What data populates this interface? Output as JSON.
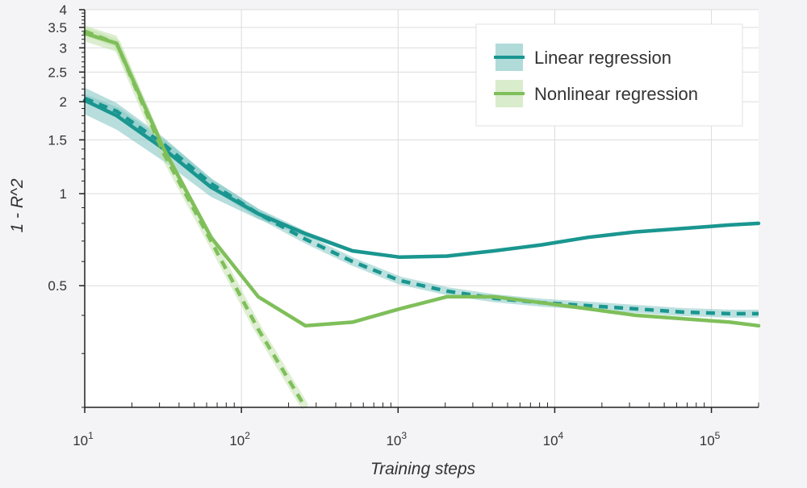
{
  "chart_data": {
    "type": "line",
    "xlabel": "Training steps",
    "ylabel": "1 - R^2",
    "xscale": "log",
    "yscale": "log",
    "xlim": [
      10,
      200000
    ],
    "ylim": [
      0.2,
      4
    ],
    "grid": true,
    "legend_position": "top-right",
    "x_ticks": [
      {
        "value": 10,
        "base": "10",
        "exp": "1"
      },
      {
        "value": 100,
        "base": "10",
        "exp": "2"
      },
      {
        "value": 1000,
        "base": "10",
        "exp": "3"
      },
      {
        "value": 10000,
        "base": "10",
        "exp": "4"
      },
      {
        "value": 100000,
        "base": "10",
        "exp": "5"
      }
    ],
    "y_ticks": [
      {
        "value": 0.5,
        "label": "0.5"
      },
      {
        "value": 1,
        "label": "1"
      },
      {
        "value": 1.5,
        "label": "1.5"
      },
      {
        "value": 2,
        "label": "2"
      },
      {
        "value": 2.5,
        "label": "2.5"
      },
      {
        "value": 3,
        "label": "3"
      },
      {
        "value": 3.5,
        "label": "3.5"
      },
      {
        "value": 4,
        "label": "4"
      }
    ],
    "series": [
      {
        "name": "Linear regression",
        "color": "#1a9690",
        "band_color": "#7cc3c0",
        "x": [
          10,
          16,
          32,
          64,
          128,
          256,
          512,
          1024,
          2048,
          4096,
          8192,
          16384,
          32768,
          65536,
          131072,
          200000
        ],
        "y": [
          2.02,
          1.8,
          1.4,
          1.05,
          0.86,
          0.74,
          0.65,
          0.62,
          0.625,
          0.65,
          0.68,
          0.72,
          0.75,
          0.77,
          0.79,
          0.8
        ],
        "band_width": [
          0.1,
          0.1,
          0.09,
          0.07,
          0.04,
          0.02,
          0.015,
          0.01,
          0.01,
          0.01,
          0.01,
          0.01,
          0.01,
          0.01,
          0.01,
          0.01
        ],
        "dashed_x": [
          10,
          16,
          32,
          64,
          128,
          256,
          512,
          1024,
          2048,
          4096,
          8192,
          16384,
          32768,
          65536,
          131072,
          200000
        ],
        "dashed_y": [
          2.05,
          1.86,
          1.45,
          1.08,
          0.86,
          0.71,
          0.6,
          0.52,
          0.48,
          0.455,
          0.44,
          0.43,
          0.42,
          0.41,
          0.405,
          0.405
        ]
      },
      {
        "name": "Nonlinear regression",
        "color": "#7fbf5a",
        "band_color": "#bfe0a8",
        "x": [
          10,
          16,
          32,
          64,
          128,
          256,
          512,
          1024,
          2048,
          4096,
          8192,
          16384,
          32768,
          65536,
          131072,
          200000
        ],
        "y": [
          3.35,
          3.1,
          1.4,
          0.72,
          0.46,
          0.37,
          0.38,
          0.42,
          0.46,
          0.46,
          0.44,
          0.42,
          0.4,
          0.39,
          0.38,
          0.37
        ],
        "band_width": [
          0.06,
          0.06,
          0.04,
          0.02,
          0.01,
          0.01,
          0.01,
          0.01,
          0.01,
          0.01,
          0.01,
          0.01,
          0.01,
          0.01,
          0.01,
          0.01
        ],
        "dashed_x": [
          10,
          16,
          32,
          64,
          128,
          256
        ],
        "dashed_y": [
          3.4,
          3.1,
          1.35,
          0.7,
          0.36,
          0.2
        ]
      }
    ]
  }
}
